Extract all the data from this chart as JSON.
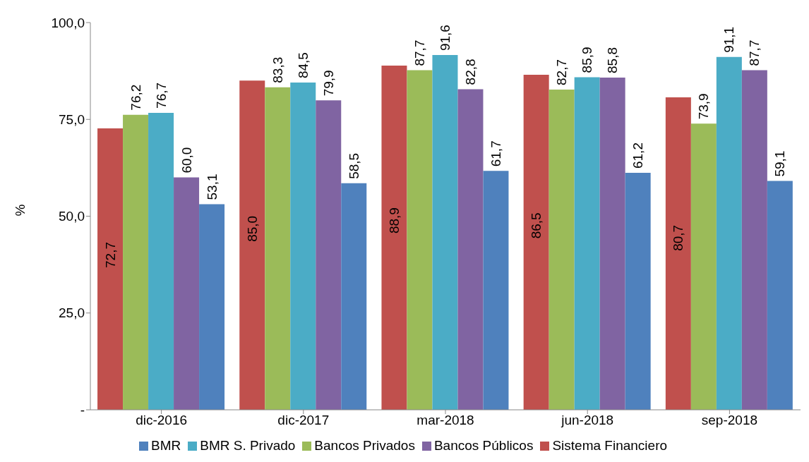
{
  "chart_data": {
    "type": "bar",
    "ylabel": "%",
    "categories": [
      "dic-2016",
      "dic-2017",
      "mar-2018",
      "jun-2018",
      "sep-2018"
    ],
    "ylim": [
      0,
      100
    ],
    "yticks": [
      {
        "value": 0,
        "label": "-"
      },
      {
        "value": 25,
        "label": "25,0"
      },
      {
        "value": 50,
        "label": "50,0"
      },
      {
        "value": 75,
        "label": "75,0"
      },
      {
        "value": 100,
        "label": "100,0"
      }
    ],
    "grid": false,
    "legend": "bottom",
    "series": [
      {
        "name": "Sistema Financiero",
        "color": "#c0504d",
        "values": [
          72.7,
          85.0,
          88.9,
          86.5,
          80.7
        ],
        "value_labels": [
          "72,7",
          "85,0",
          "88,9",
          "86,5",
          "80,7"
        ]
      },
      {
        "name": "Bancos Privados",
        "color": "#9bbb59",
        "values": [
          76.2,
          83.3,
          87.7,
          82.7,
          73.9
        ],
        "value_labels": [
          "76,2",
          "83,3",
          "87,7",
          "82,7",
          "73,9"
        ]
      },
      {
        "name": "BMR S. Privado",
        "color": "#4bacc6",
        "values": [
          76.7,
          84.5,
          91.6,
          85.9,
          91.1
        ],
        "value_labels": [
          "76,7",
          "84,5",
          "91,6",
          "85,9",
          "91,1"
        ]
      },
      {
        "name": "Bancos Públicos",
        "color": "#8064a2",
        "values": [
          60.0,
          79.9,
          82.8,
          85.8,
          87.7
        ],
        "value_labels": [
          "60,0",
          "79,9",
          "82,8",
          "85,8",
          "87,7"
        ]
      },
      {
        "name": "BMR",
        "color": "#4f81bd",
        "values": [
          53.1,
          58.5,
          61.7,
          61.2,
          59.1
        ],
        "value_labels": [
          "53,1",
          "58,5",
          "61,7",
          "61,2",
          "59,1"
        ]
      }
    ]
  }
}
